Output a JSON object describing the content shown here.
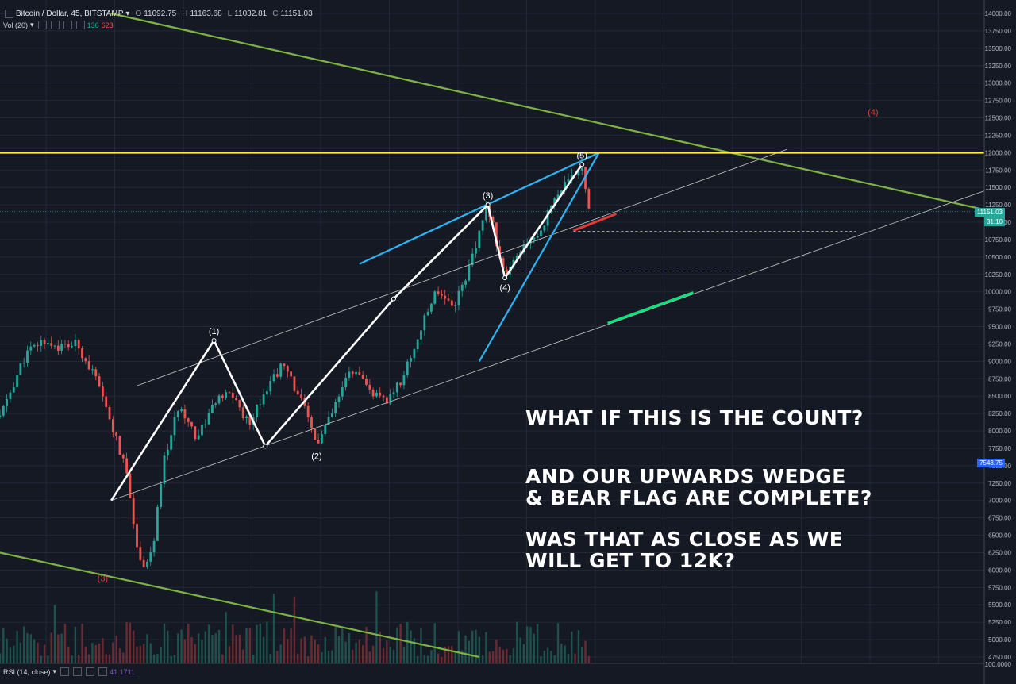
{
  "header": {
    "symbol": "Bitcoin / Dollar, 45, BITSTAMP",
    "o_label": "O",
    "o_value": "11092.75",
    "h_label": "H",
    "h_value": "11163.68",
    "l_label": "L",
    "l_value": "11032.81",
    "c_label": "C",
    "c_value": "11151.03",
    "vol_label": "Vol (20)",
    "vol_value_1": "136",
    "vol_value_2": "623"
  },
  "rsi": {
    "label": "RSI (14, close)",
    "value": "41.1711"
  },
  "price_tags": {
    "last": "11151.03",
    "countdown": "31:10",
    "crosshair": "7543.75"
  },
  "annotations": {
    "line1": "WHAT IF THIS IS THE COUNT?",
    "line2": "AND OUR UPWARDS WEDGE",
    "line3": "& BEAR FLAG ARE COMPLETE?",
    "line4": "WAS THAT AS CLOSE AS WE",
    "line5": "WILL GET TO 12K?"
  },
  "chart_data": {
    "type": "candlestick",
    "title": "Bitcoin / Dollar, 45, BITSTAMP",
    "xlabel": "",
    "ylabel": "",
    "ylim": [
      4750,
      14000
    ],
    "ytick_labels": [
      "14000.00",
      "13750.00",
      "13500.00",
      "13250.00",
      "13000.00",
      "12750.00",
      "12500.00",
      "12250.00",
      "12000.00",
      "11750.00",
      "11500.00",
      "11250.00",
      "11000.00",
      "10750.00",
      "10500.00",
      "10250.00",
      "10000.00",
      "9750.00",
      "9500.00",
      "9250.00",
      "9000.00",
      "8750.00",
      "8500.00",
      "8250.00",
      "8000.00",
      "7750.00",
      "7500.00",
      "7250.00",
      "7000.00",
      "6750.00",
      "6500.00",
      "6250.00",
      "6000.00",
      "5750.00",
      "5500.00",
      "5250.00",
      "5000.00",
      "4750.00"
    ],
    "rsi_tick_labels": [
      "100.0000"
    ],
    "grid": true,
    "price_path": [
      [
        0,
        8200
      ],
      [
        3,
        9100
      ],
      [
        5,
        9300
      ],
      [
        7,
        9200
      ],
      [
        9,
        9250
      ],
      [
        11,
        8800
      ],
      [
        13,
        8100
      ],
      [
        15,
        7300
      ],
      [
        16,
        6300
      ],
      [
        17,
        6050
      ],
      [
        18,
        6400
      ],
      [
        19,
        7500
      ],
      [
        21,
        8400
      ],
      [
        23,
        7900
      ],
      [
        25,
        8400
      ],
      [
        27,
        8550
      ],
      [
        29,
        8100
      ],
      [
        31,
        8600
      ],
      [
        33,
        8950
      ],
      [
        35,
        8500
      ],
      [
        37,
        7800
      ],
      [
        39,
        8300
      ],
      [
        41,
        8900
      ],
      [
        43,
        8600
      ],
      [
        45,
        8400
      ],
      [
        47,
        8750
      ],
      [
        49,
        9400
      ],
      [
        51,
        10050
      ],
      [
        53,
        9800
      ],
      [
        55,
        10400
      ],
      [
        57,
        11250
      ],
      [
        59,
        10200
      ],
      [
        61,
        10600
      ],
      [
        63,
        10850
      ],
      [
        65,
        11400
      ],
      [
        67,
        11650
      ],
      [
        68,
        11830
      ],
      [
        69,
        11100
      ]
    ],
    "last_price": 11151.03,
    "horizontal_level": 12000,
    "wave_labels": [
      {
        "text": "(1)",
        "x": 25,
        "y": 9300
      },
      {
        "text": "(2)",
        "x": 37,
        "y": 7780
      },
      {
        "text": "(3)",
        "x": 57,
        "y": 11250
      },
      {
        "text": "(4)",
        "x": 59,
        "y": 10200
      },
      {
        "text": "(5)",
        "x": 68,
        "y": 11830
      },
      {
        "text": "(4)",
        "x": 102,
        "y": 12450
      },
      {
        "text": "(3)",
        "x": 12,
        "y": 5750
      }
    ],
    "trendlines": [
      {
        "name": "falling-resistance-upper",
        "color": "#7cb342",
        "from": [
          13,
          14000
        ],
        "to": [
          115,
          11180
        ]
      },
      {
        "name": "falling-support-lower",
        "color": "#7cb342",
        "from": [
          0,
          6250
        ],
        "to": [
          56,
          4750
        ]
      },
      {
        "name": "channel-upper",
        "color": "#c8c8c8",
        "from": [
          16,
          8650
        ],
        "to": [
          92,
          12050
        ]
      },
      {
        "name": "channel-lower",
        "color": "#c8c8c8",
        "from": [
          13,
          7000
        ],
        "to": [
          115,
          11450
        ]
      },
      {
        "name": "wedge-upper",
        "color": "#29b6f6",
        "from": [
          42,
          10400
        ],
        "to": [
          70,
          12000
        ]
      },
      {
        "name": "wedge-lower",
        "color": "#29b6f6",
        "from": [
          56,
          9000
        ],
        "to": [
          70,
          12000
        ]
      },
      {
        "name": "red-segment",
        "color": "#e53935",
        "from": [
          67,
          10880
        ],
        "to": [
          72,
          11120
        ]
      },
      {
        "name": "green-segment",
        "color": "#00e676",
        "from": [
          71,
          9550
        ],
        "to": [
          81,
          9990
        ]
      }
    ],
    "wave_lines": [
      [
        13,
        7000
      ],
      [
        25,
        9300
      ],
      [
        31,
        7780
      ],
      [
        46,
        9900
      ],
      [
        57,
        11250
      ],
      [
        59,
        10200
      ],
      [
        68,
        11830
      ]
    ],
    "dotted_levels": [
      {
        "value": 10870,
        "from": 67,
        "to": 100
      },
      {
        "value": 10300,
        "from": 59,
        "to": 88
      }
    ]
  }
}
